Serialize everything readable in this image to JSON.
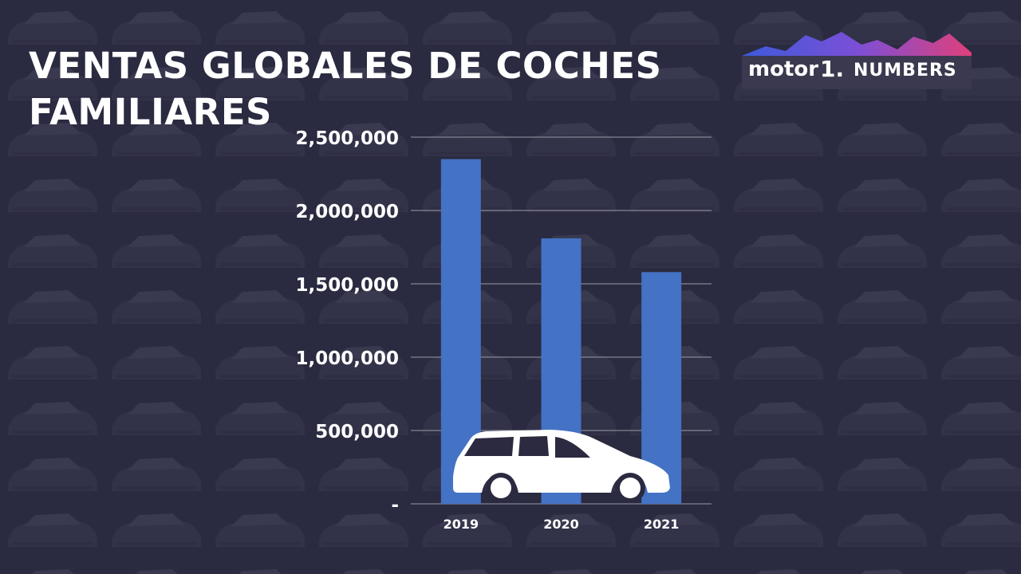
{
  "header": {
    "title": "VENTAS GLOBALES DE COCHES FAMILIARES"
  },
  "logo": {
    "brand": "motor",
    "number": "1.",
    "suffix": "NUMBERS"
  },
  "icon": "station-wagon-car-icon",
  "colors": {
    "background": "#2b2a40",
    "bar": "#4472c4",
    "text": "#ffffff",
    "gridline": "#9a9aa8"
  },
  "chart_data": {
    "type": "bar",
    "categories": [
      "2019",
      "2020",
      "2021"
    ],
    "values": [
      2350000,
      1810000,
      1580000
    ],
    "ylim": [
      0,
      2500000
    ],
    "y_ticks": [
      0,
      500000,
      1000000,
      1500000,
      2000000,
      2500000
    ],
    "y_tick_labels": [
      "-",
      "500,000",
      "1,000,000",
      "1,500,000",
      "2,000,000",
      "2,500,000"
    ],
    "grid": true,
    "legend": "none",
    "xlabel": "",
    "ylabel": ""
  }
}
